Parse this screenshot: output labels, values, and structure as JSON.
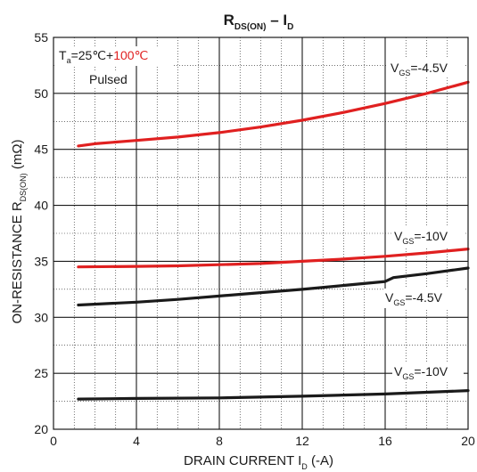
{
  "chart_data": {
    "type": "line",
    "title": {
      "main": "R",
      "sub1": "DS(ON)",
      "sep": " – I",
      "sub2": "D"
    },
    "xlabel": {
      "pre": "DRAIN CURRENT I",
      "sub": "D",
      "post": " (-A)"
    },
    "ylabel": {
      "pre": "ON-RESISTANCE R",
      "sub": "DS(ON)",
      "post": " (mΩ)"
    },
    "xlim": [
      0,
      20
    ],
    "ylim": [
      20,
      55
    ],
    "xticks": [
      "0",
      "4",
      "8",
      "12",
      "16",
      "20"
    ],
    "yticks": [
      "20",
      "25",
      "30",
      "35",
      "40",
      "45",
      "50",
      "55"
    ],
    "grid": true,
    "annotations": {
      "ta_prefix": "T",
      "ta_sub": "a",
      "ta_mid": "=25℃+",
      "ta_red": "100℃",
      "pulsed": "Pulsed"
    },
    "colors": {
      "hot": "#e02020",
      "room": "#1a1a1a",
      "grid": "#1a1a1a"
    },
    "series": [
      {
        "color": "#e02020",
        "label": {
          "pre": "V",
          "sub": "GS",
          "post": "=-4.5V"
        },
        "x": [
          1.2,
          2,
          4,
          6,
          8,
          10,
          12,
          14,
          16,
          18,
          20
        ],
        "y": [
          45.3,
          45.5,
          45.8,
          46.1,
          46.5,
          47.0,
          47.6,
          48.3,
          49.1,
          50.0,
          51.0
        ]
      },
      {
        "color": "#e02020",
        "label": {
          "pre": "V",
          "sub": "GS",
          "post": "=-10V"
        },
        "x": [
          1.2,
          4,
          6,
          8,
          10,
          12,
          14,
          16,
          18,
          20
        ],
        "y": [
          34.5,
          34.55,
          34.6,
          34.7,
          34.8,
          35.0,
          35.2,
          35.45,
          35.75,
          36.1
        ]
      },
      {
        "color": "#1a1a1a",
        "label": {
          "pre": "V",
          "sub": "GS",
          "post": "=-4.5V"
        },
        "x": [
          1.2,
          4,
          6,
          8,
          10,
          12,
          14,
          16,
          16.4,
          18,
          20
        ],
        "y": [
          31.1,
          31.35,
          31.6,
          31.9,
          32.2,
          32.5,
          32.85,
          33.2,
          33.55,
          33.9,
          34.4
        ]
      },
      {
        "color": "#1a1a1a",
        "label": {
          "pre": "V",
          "sub": "GS",
          "post": "=-10V"
        },
        "x": [
          1.2,
          4,
          8,
          12,
          16,
          20
        ],
        "y": [
          22.7,
          22.75,
          22.8,
          22.95,
          23.15,
          23.45
        ]
      }
    ]
  }
}
